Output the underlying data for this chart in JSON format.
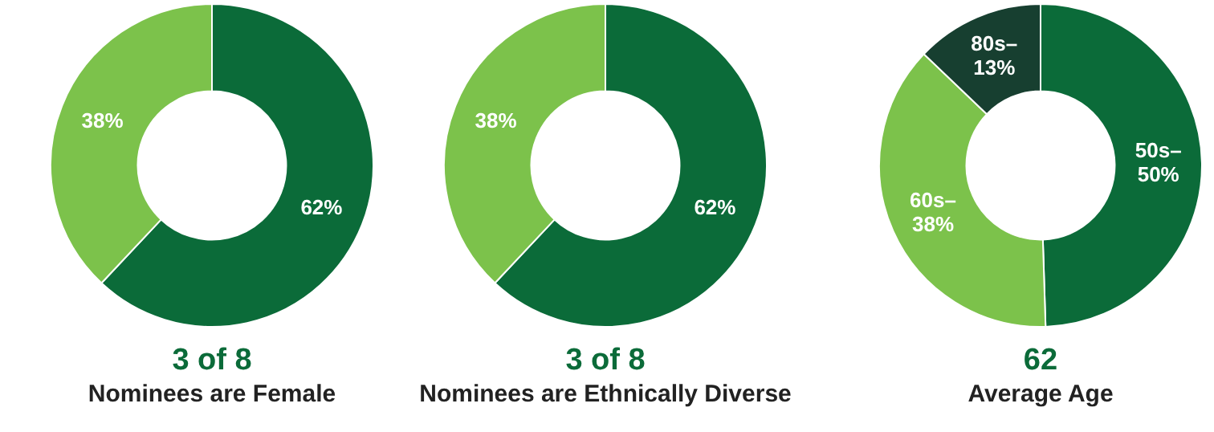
{
  "chart_data": [
    {
      "type": "donut",
      "title": "3 of 8",
      "subtitle": "Nominees are Female",
      "categories": [
        null,
        null
      ],
      "values": [
        62,
        38
      ],
      "colors": [
        "#0b6b39",
        "#7cc24b"
      ],
      "value_labels": [
        "62%",
        "38%"
      ],
      "legend": false
    },
    {
      "type": "donut",
      "title": "3 of 8",
      "subtitle": "Nominees are Ethnically Diverse",
      "categories": [
        null,
        null
      ],
      "values": [
        62,
        38
      ],
      "colors": [
        "#0b6b39",
        "#7cc24b"
      ],
      "value_labels": [
        "62%",
        "38%"
      ],
      "legend": false
    },
    {
      "type": "donut",
      "title": "62",
      "subtitle": "Average Age",
      "categories": [
        "50s–",
        "60s–",
        "80s–"
      ],
      "values": [
        50,
        38,
        13
      ],
      "colors": [
        "#0b6b39",
        "#7cc24b",
        "#173f30"
      ],
      "value_labels": [
        "50%",
        "38%",
        "13%"
      ],
      "legend": false
    }
  ]
}
